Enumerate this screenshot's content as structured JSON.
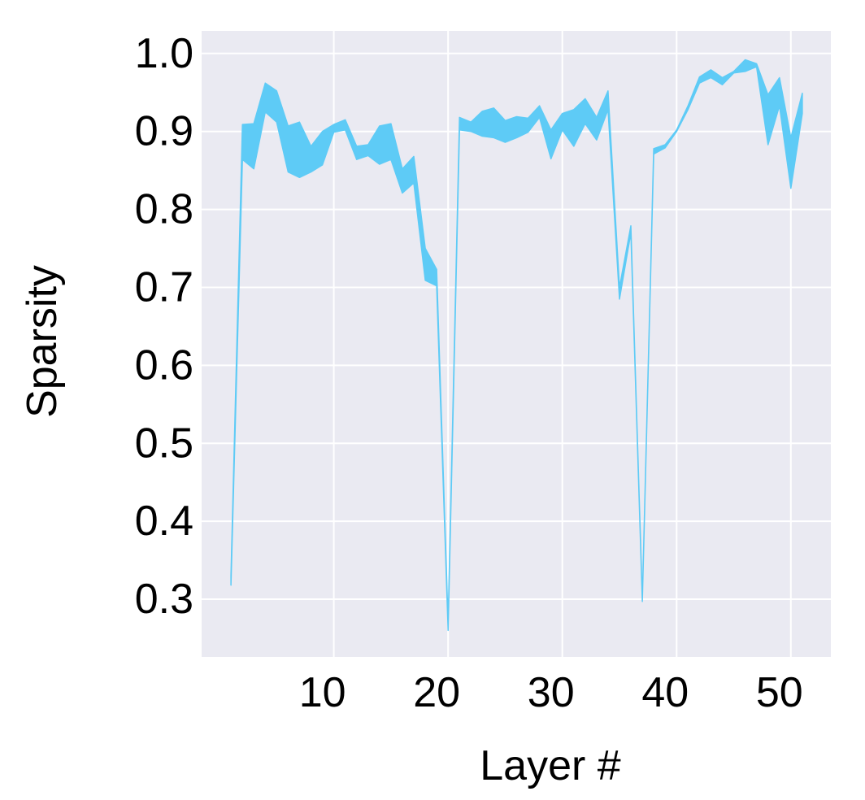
{
  "chart_data": {
    "type": "band",
    "xlabel": "Layer #",
    "ylabel": "Sparsity",
    "x": [
      1,
      2,
      3,
      4,
      5,
      6,
      7,
      8,
      9,
      10,
      11,
      12,
      13,
      14,
      15,
      16,
      17,
      18,
      19,
      20,
      21,
      22,
      23,
      24,
      25,
      26,
      27,
      28,
      29,
      30,
      31,
      32,
      33,
      34,
      35,
      36,
      37,
      38,
      39,
      40,
      41,
      42,
      43,
      44,
      45,
      46,
      47,
      48,
      49,
      50,
      51
    ],
    "upper": [
      0.33,
      0.909,
      0.91,
      0.962,
      0.952,
      0.907,
      0.912,
      0.881,
      0.9,
      0.909,
      0.915,
      0.881,
      0.883,
      0.907,
      0.91,
      0.852,
      0.868,
      0.75,
      0.723,
      0.27,
      0.918,
      0.912,
      0.926,
      0.93,
      0.914,
      0.919,
      0.917,
      0.933,
      0.902,
      0.923,
      0.928,
      0.942,
      0.918,
      0.952,
      0.7,
      0.779,
      0.3,
      0.878,
      0.883,
      0.902,
      0.933,
      0.97,
      0.979,
      0.969,
      0.977,
      0.992,
      0.987,
      0.947,
      0.969,
      0.892,
      0.949
    ],
    "lower": [
      0.318,
      0.864,
      0.852,
      0.925,
      0.912,
      0.848,
      0.841,
      0.848,
      0.857,
      0.899,
      0.902,
      0.864,
      0.869,
      0.858,
      0.864,
      0.821,
      0.834,
      0.709,
      0.702,
      0.26,
      0.902,
      0.9,
      0.894,
      0.892,
      0.886,
      0.892,
      0.899,
      0.918,
      0.865,
      0.902,
      0.881,
      0.91,
      0.889,
      0.928,
      0.685,
      0.77,
      0.297,
      0.871,
      0.879,
      0.9,
      0.928,
      0.962,
      0.969,
      0.96,
      0.975,
      0.977,
      0.983,
      0.883,
      0.933,
      0.827,
      0.923
    ],
    "color": "#5ecbf6",
    "xlim": [
      -1.57,
      53.5
    ],
    "xticks": [
      10,
      20,
      30,
      40,
      50
    ],
    "ylim": [
      0.226,
      1.029
    ],
    "yticks": [
      0.3,
      0.4,
      0.5,
      0.6,
      0.7,
      0.8,
      0.9,
      {
        "value": 1,
        "label": "1.0"
      }
    ],
    "grid": true
  }
}
